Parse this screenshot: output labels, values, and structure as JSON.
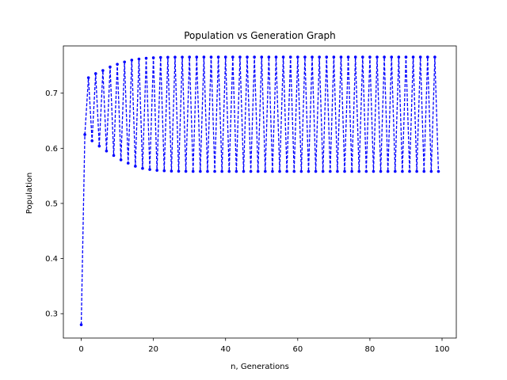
{
  "chart_data": {
    "type": "line",
    "title": "Population vs Generation Graph",
    "xlabel": "n, Generations",
    "ylabel": "Population",
    "xlim": [
      -4.95,
      103.95
    ],
    "ylim": [
      0.2558,
      0.7857
    ],
    "xticks": [
      0,
      20,
      40,
      60,
      80,
      100
    ],
    "yticks": [
      0.3,
      0.4,
      0.5,
      0.6,
      0.7
    ],
    "grid": false,
    "line_style": "dashed",
    "marker": "dot",
    "series": [
      {
        "color": "#0000ff",
        "x": [
          0,
          1,
          2,
          3,
          4,
          5,
          6,
          7,
          8,
          9,
          10,
          11,
          12,
          13,
          14,
          15,
          16,
          17,
          18,
          19,
          20,
          21,
          22,
          23,
          24,
          25,
          26,
          27,
          28,
          29,
          30,
          31,
          32,
          33,
          34,
          35,
          36,
          37,
          38,
          39,
          40,
          41,
          42,
          43,
          44,
          45,
          46,
          47,
          48,
          49,
          50,
          51,
          52,
          53,
          54,
          55,
          56,
          57,
          58,
          59,
          60,
          61,
          62,
          63,
          64,
          65,
          66,
          67,
          68,
          69,
          70,
          71,
          72,
          73,
          74,
          75,
          76,
          77,
          78,
          79,
          80,
          81,
          82,
          83,
          84,
          85,
          86,
          87,
          88,
          89,
          90,
          91,
          92,
          93,
          94,
          95,
          96,
          97,
          98,
          99
        ],
        "y": [
          0.28,
          0.6249,
          0.728,
          0.6135,
          0.7355,
          0.604,
          0.7412,
          0.595,
          0.7475,
          0.587,
          0.7525,
          0.579,
          0.7566,
          0.573,
          0.76,
          0.5675,
          0.762,
          0.5635,
          0.7634,
          0.5615,
          0.7642,
          0.56,
          0.7648,
          0.5592,
          0.7651,
          0.5587,
          0.7653,
          0.5584,
          0.7654,
          0.5582,
          0.7655,
          0.5581,
          0.7655,
          0.558,
          0.7655,
          0.558,
          0.7655,
          0.558,
          0.7655,
          0.558,
          0.7655,
          0.558,
          0.7655,
          0.558,
          0.7655,
          0.558,
          0.7655,
          0.558,
          0.7655,
          0.558,
          0.7655,
          0.558,
          0.7655,
          0.558,
          0.7655,
          0.558,
          0.7655,
          0.558,
          0.7655,
          0.558,
          0.7655,
          0.558,
          0.7655,
          0.558,
          0.7655,
          0.558,
          0.7655,
          0.558,
          0.7655,
          0.558,
          0.7655,
          0.558,
          0.7655,
          0.558,
          0.7655,
          0.558,
          0.7655,
          0.558,
          0.7655,
          0.558,
          0.7655,
          0.558,
          0.7655,
          0.558,
          0.7655,
          0.558,
          0.7655,
          0.558,
          0.7655,
          0.558,
          0.7655,
          0.558,
          0.7655,
          0.558,
          0.7655,
          0.558,
          0.7655,
          0.558,
          0.7655,
          0.558
        ]
      }
    ]
  }
}
